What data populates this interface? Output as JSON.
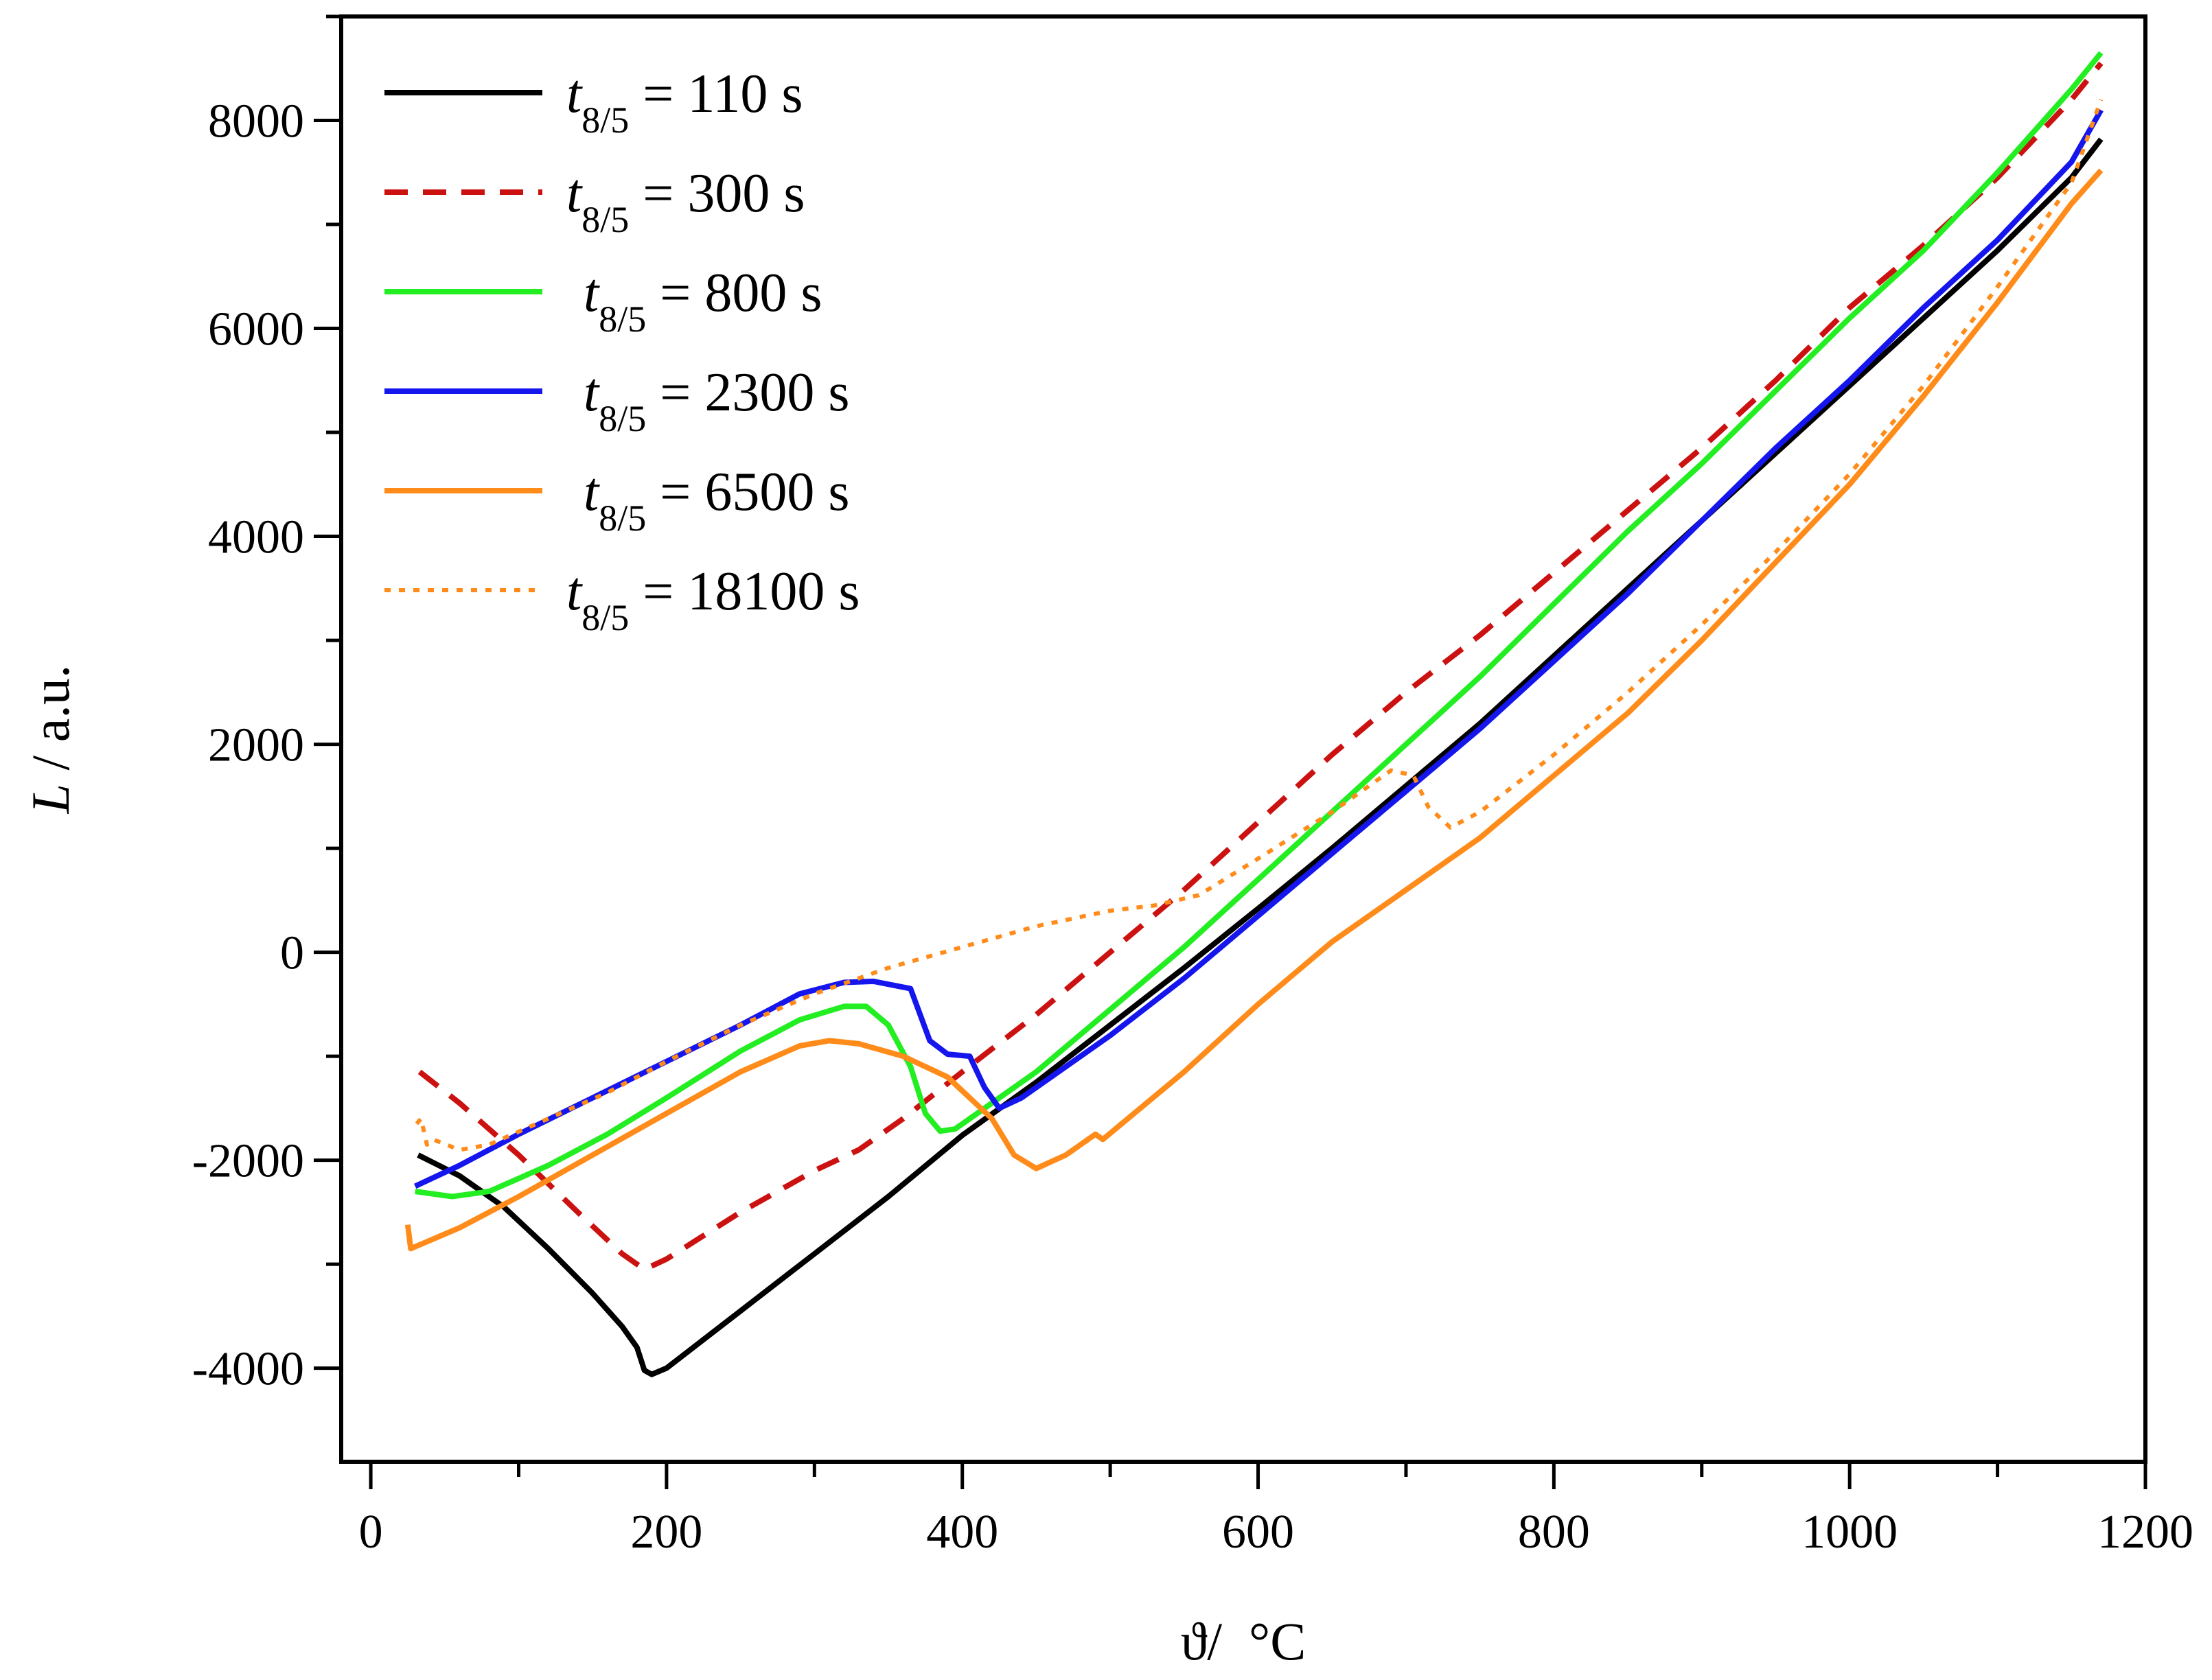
{
  "chart_data": {
    "type": "line",
    "title": "",
    "xlabel_symbol": "ϑ",
    "xlabel_unit": "/  °C",
    "ylabel_symbol": "L",
    "ylabel_unit": " / a.u.",
    "xlim": [
      -20,
      1200
    ],
    "ylim": [
      -4900,
      9000
    ],
    "xticks": [
      0,
      200,
      400,
      600,
      800,
      1000,
      1200
    ],
    "xtick_labels": [
      "0",
      "200",
      "400",
      "600",
      "800",
      "1000",
      "1200"
    ],
    "yticks": [
      -4000,
      -2000,
      0,
      2000,
      4000,
      6000,
      8000
    ],
    "ytick_labels": [
      "-4000",
      "-2000",
      "0",
      "2000",
      "4000",
      "6000",
      "8000"
    ],
    "x_minor_step": 100,
    "y_minor_step": 1000,
    "legend_position": "top-left",
    "series": [
      {
        "name": "t8/5 = 110 s",
        "symbol": "t",
        "subscript": "8/5",
        "value_text": " = 110 s",
        "color": "#000000",
        "dash": "solid",
        "points": [
          [
            32,
            -1950
          ],
          [
            60,
            -2150
          ],
          [
            90,
            -2450
          ],
          [
            120,
            -2850
          ],
          [
            150,
            -3280
          ],
          [
            170,
            -3600
          ],
          [
            180,
            -3800
          ],
          [
            185,
            -4020
          ],
          [
            190,
            -4060
          ],
          [
            200,
            -4000
          ],
          [
            250,
            -3450
          ],
          [
            300,
            -2900
          ],
          [
            350,
            -2350
          ],
          [
            400,
            -1760
          ],
          [
            450,
            -1250
          ],
          [
            500,
            -700
          ],
          [
            550,
            -150
          ],
          [
            600,
            420
          ],
          [
            650,
            1000
          ],
          [
            700,
            1600
          ],
          [
            750,
            2200
          ],
          [
            800,
            2850
          ],
          [
            850,
            3500
          ],
          [
            900,
            4150
          ],
          [
            950,
            4800
          ],
          [
            1000,
            5450
          ],
          [
            1050,
            6100
          ],
          [
            1100,
            6750
          ],
          [
            1150,
            7450
          ],
          [
            1170,
            7820
          ]
        ]
      },
      {
        "name": "t8/5 = 300 s",
        "symbol": "t",
        "subscript": "8/5",
        "value_text": " = 300 s",
        "color": "#cc1111",
        "dash": "dashed",
        "points": [
          [
            33,
            -1150
          ],
          [
            60,
            -1450
          ],
          [
            100,
            -1950
          ],
          [
            140,
            -2500
          ],
          [
            170,
            -2900
          ],
          [
            185,
            -3050
          ],
          [
            200,
            -2950
          ],
          [
            250,
            -2500
          ],
          [
            300,
            -2100
          ],
          [
            330,
            -1900
          ],
          [
            360,
            -1600
          ],
          [
            400,
            -1150
          ],
          [
            450,
            -600
          ],
          [
            500,
            0
          ],
          [
            550,
            600
          ],
          [
            600,
            1250
          ],
          [
            650,
            1900
          ],
          [
            700,
            2500
          ],
          [
            750,
            3050
          ],
          [
            800,
            3650
          ],
          [
            850,
            4250
          ],
          [
            900,
            4850
          ],
          [
            950,
            5500
          ],
          [
            1000,
            6200
          ],
          [
            1050,
            6800
          ],
          [
            1100,
            7450
          ],
          [
            1150,
            8200
          ],
          [
            1170,
            8550
          ]
        ]
      },
      {
        "name": "t8/5 = 800 s",
        "symbol": "t",
        "subscript": "8/5",
        "value_text": " = 800 s",
        "color": "#22ee22",
        "dash": "solid",
        "points": [
          [
            30,
            -2300
          ],
          [
            55,
            -2350
          ],
          [
            80,
            -2300
          ],
          [
            120,
            -2050
          ],
          [
            160,
            -1750
          ],
          [
            200,
            -1400
          ],
          [
            250,
            -950
          ],
          [
            290,
            -650
          ],
          [
            320,
            -520
          ],
          [
            335,
            -520
          ],
          [
            350,
            -700
          ],
          [
            365,
            -1100
          ],
          [
            375,
            -1550
          ],
          [
            385,
            -1720
          ],
          [
            395,
            -1700
          ],
          [
            420,
            -1450
          ],
          [
            450,
            -1150
          ],
          [
            500,
            -550
          ],
          [
            550,
            50
          ],
          [
            600,
            700
          ],
          [
            650,
            1350
          ],
          [
            700,
            2000
          ],
          [
            750,
            2650
          ],
          [
            800,
            3350
          ],
          [
            850,
            4050
          ],
          [
            900,
            4700
          ],
          [
            950,
            5400
          ],
          [
            1000,
            6100
          ],
          [
            1050,
            6750
          ],
          [
            1100,
            7500
          ],
          [
            1150,
            8300
          ],
          [
            1170,
            8650
          ]
        ]
      },
      {
        "name": "t8/5 = 2300 s",
        "symbol": "t",
        "subscript": "8/5",
        "value_text": " = 2300 s",
        "color": "#1515ee",
        "dash": "solid",
        "points": [
          [
            30,
            -2250
          ],
          [
            60,
            -2050
          ],
          [
            100,
            -1750
          ],
          [
            150,
            -1400
          ],
          [
            200,
            -1050
          ],
          [
            250,
            -700
          ],
          [
            290,
            -400
          ],
          [
            320,
            -290
          ],
          [
            340,
            -280
          ],
          [
            365,
            -350
          ],
          [
            378,
            -850
          ],
          [
            390,
            -980
          ],
          [
            405,
            -1000
          ],
          [
            415,
            -1300
          ],
          [
            425,
            -1500
          ],
          [
            440,
            -1400
          ],
          [
            500,
            -800
          ],
          [
            550,
            -250
          ],
          [
            600,
            350
          ],
          [
            650,
            950
          ],
          [
            700,
            1550
          ],
          [
            750,
            2150
          ],
          [
            800,
            2800
          ],
          [
            850,
            3450
          ],
          [
            900,
            4150
          ],
          [
            950,
            4850
          ],
          [
            1000,
            5500
          ],
          [
            1050,
            6200
          ],
          [
            1100,
            6850
          ],
          [
            1150,
            7600
          ],
          [
            1170,
            8100
          ]
        ]
      },
      {
        "name": "t8/5 = 6500 s",
        "symbol": "t",
        "subscript": "8/5",
        "value_text": " = 6500 s",
        "color": "#ff8c1a",
        "dash": "solid",
        "points": [
          [
            25,
            -2620
          ],
          [
            27,
            -2850
          ],
          [
            60,
            -2650
          ],
          [
            100,
            -2350
          ],
          [
            150,
            -1950
          ],
          [
            200,
            -1550
          ],
          [
            250,
            -1150
          ],
          [
            290,
            -900
          ],
          [
            310,
            -850
          ],
          [
            330,
            -880
          ],
          [
            360,
            -1000
          ],
          [
            390,
            -1200
          ],
          [
            420,
            -1600
          ],
          [
            435,
            -1950
          ],
          [
            450,
            -2080
          ],
          [
            470,
            -1950
          ],
          [
            490,
            -1750
          ],
          [
            495,
            -1800
          ],
          [
            550,
            -1150
          ],
          [
            600,
            -500
          ],
          [
            650,
            100
          ],
          [
            700,
            600
          ],
          [
            750,
            1100
          ],
          [
            800,
            1700
          ],
          [
            850,
            2300
          ],
          [
            900,
            3000
          ],
          [
            950,
            3750
          ],
          [
            1000,
            4500
          ],
          [
            1050,
            5350
          ],
          [
            1100,
            6250
          ],
          [
            1150,
            7200
          ],
          [
            1170,
            7520
          ]
        ]
      },
      {
        "name": "t8/5 = 18100 s",
        "symbol": "t",
        "subscript": "8/5",
        "value_text": " = 18100 s",
        "color": "#ff8c1a",
        "dash": "dotted",
        "points": [
          [
            31,
            -1650
          ],
          [
            34,
            -1600
          ],
          [
            38,
            -1850
          ],
          [
            42,
            -1800
          ],
          [
            60,
            -1900
          ],
          [
            80,
            -1850
          ],
          [
            120,
            -1600
          ],
          [
            160,
            -1350
          ],
          [
            200,
            -1050
          ],
          [
            250,
            -700
          ],
          [
            300,
            -400
          ],
          [
            350,
            -150
          ],
          [
            400,
            50
          ],
          [
            450,
            250
          ],
          [
            500,
            400
          ],
          [
            530,
            450
          ],
          [
            560,
            550
          ],
          [
            600,
            900
          ],
          [
            650,
            1350
          ],
          [
            690,
            1750
          ],
          [
            705,
            1700
          ],
          [
            715,
            1400
          ],
          [
            730,
            1200
          ],
          [
            750,
            1350
          ],
          [
            800,
            1900
          ],
          [
            850,
            2500
          ],
          [
            900,
            3150
          ],
          [
            950,
            3850
          ],
          [
            1000,
            4600
          ],
          [
            1050,
            5450
          ],
          [
            1100,
            6400
          ],
          [
            1150,
            7400
          ],
          [
            1170,
            8200
          ]
        ]
      }
    ]
  }
}
